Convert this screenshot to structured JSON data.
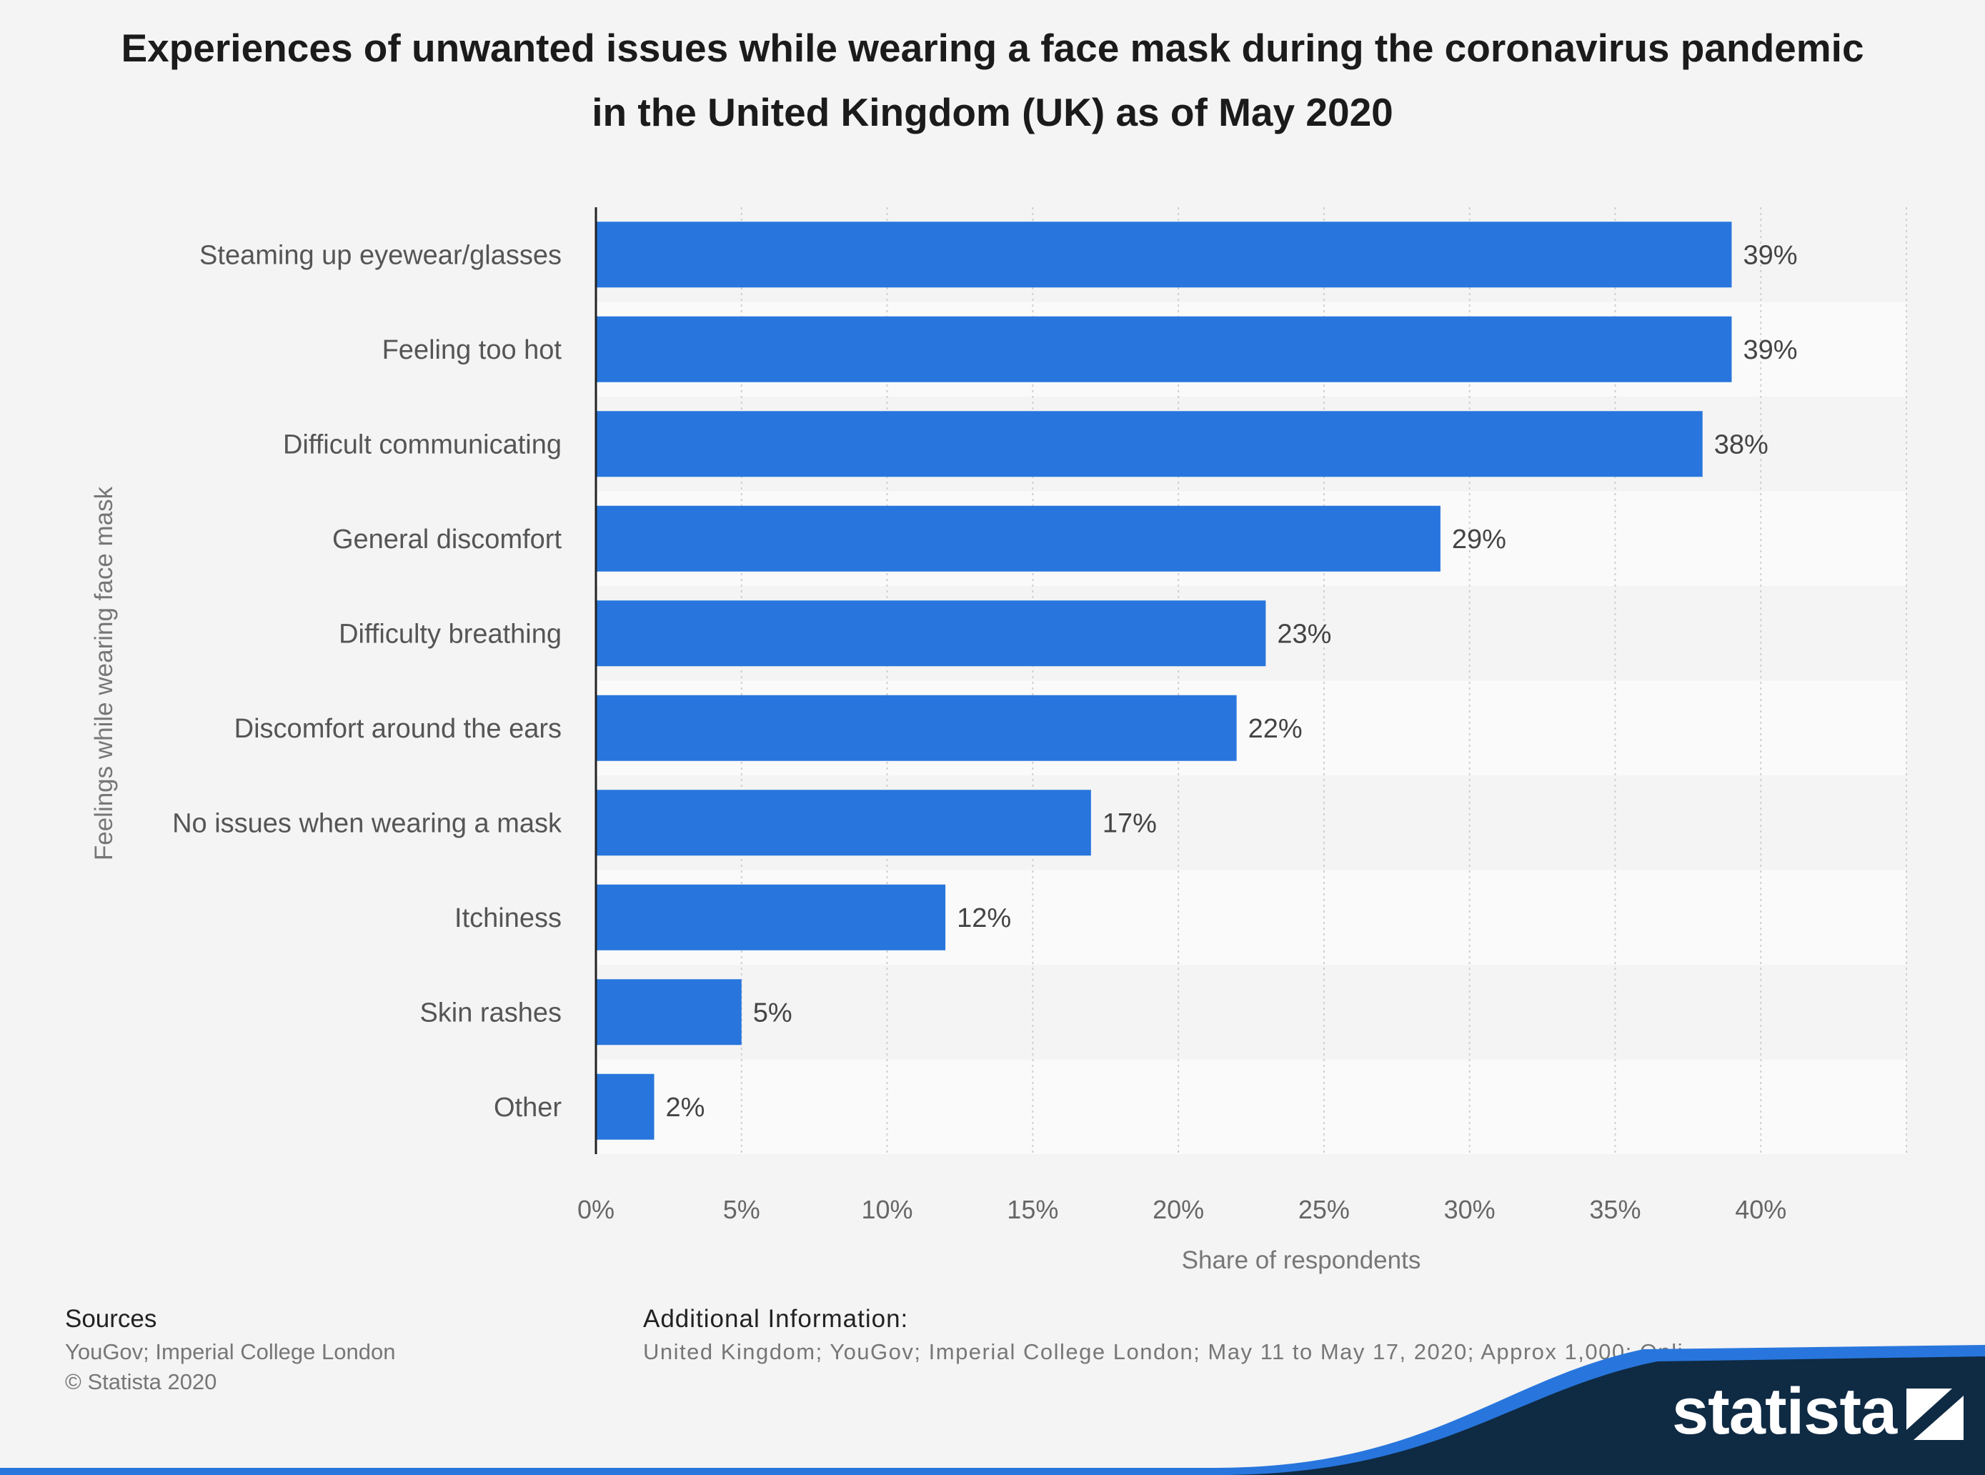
{
  "chart_data": {
    "type": "bar",
    "orientation": "horizontal",
    "title": "Experiences of unwanted issues while wearing a face mask during the coronavirus pandemic in the United Kingdom (UK) as of May 2020",
    "xlabel": "Share of respondents",
    "ylabel": "Feelings while wearing face mask",
    "categories": [
      "Steaming up eyewear/glasses",
      "Feeling too hot",
      "Difficult communicating",
      "General discomfort",
      "Difficulty breathing",
      "Discomfort around the ears",
      "No issues when wearing a mask",
      "Itchiness",
      "Skin rashes",
      "Other"
    ],
    "values": [
      39,
      39,
      38,
      29,
      23,
      22,
      17,
      12,
      5,
      2
    ],
    "value_labels": [
      "39%",
      "39%",
      "38%",
      "29%",
      "23%",
      "22%",
      "17%",
      "12%",
      "5%",
      "2%"
    ],
    "xlim": [
      0,
      45
    ],
    "ticks": [
      0,
      5,
      10,
      15,
      20,
      25,
      30,
      35,
      40
    ],
    "tick_labels": [
      "0%",
      "5%",
      "10%",
      "15%",
      "20%",
      "25%",
      "30%",
      "35%",
      "40%"
    ],
    "grid": true,
    "bar_color": "#2876dd"
  },
  "footer": {
    "sources_heading": "Sources",
    "sources_line1": "YouGov; Imperial College London",
    "sources_line2": "© Statista 2020",
    "additional_heading": "Additional Information:",
    "additional_text": "United Kingdom; YouGov; Imperial College London; May 11 to May 17, 2020; Approx 1,000; Onli",
    "brand": "statista",
    "brand_color": "#0f2a43",
    "accent_color": "#2876dd"
  }
}
